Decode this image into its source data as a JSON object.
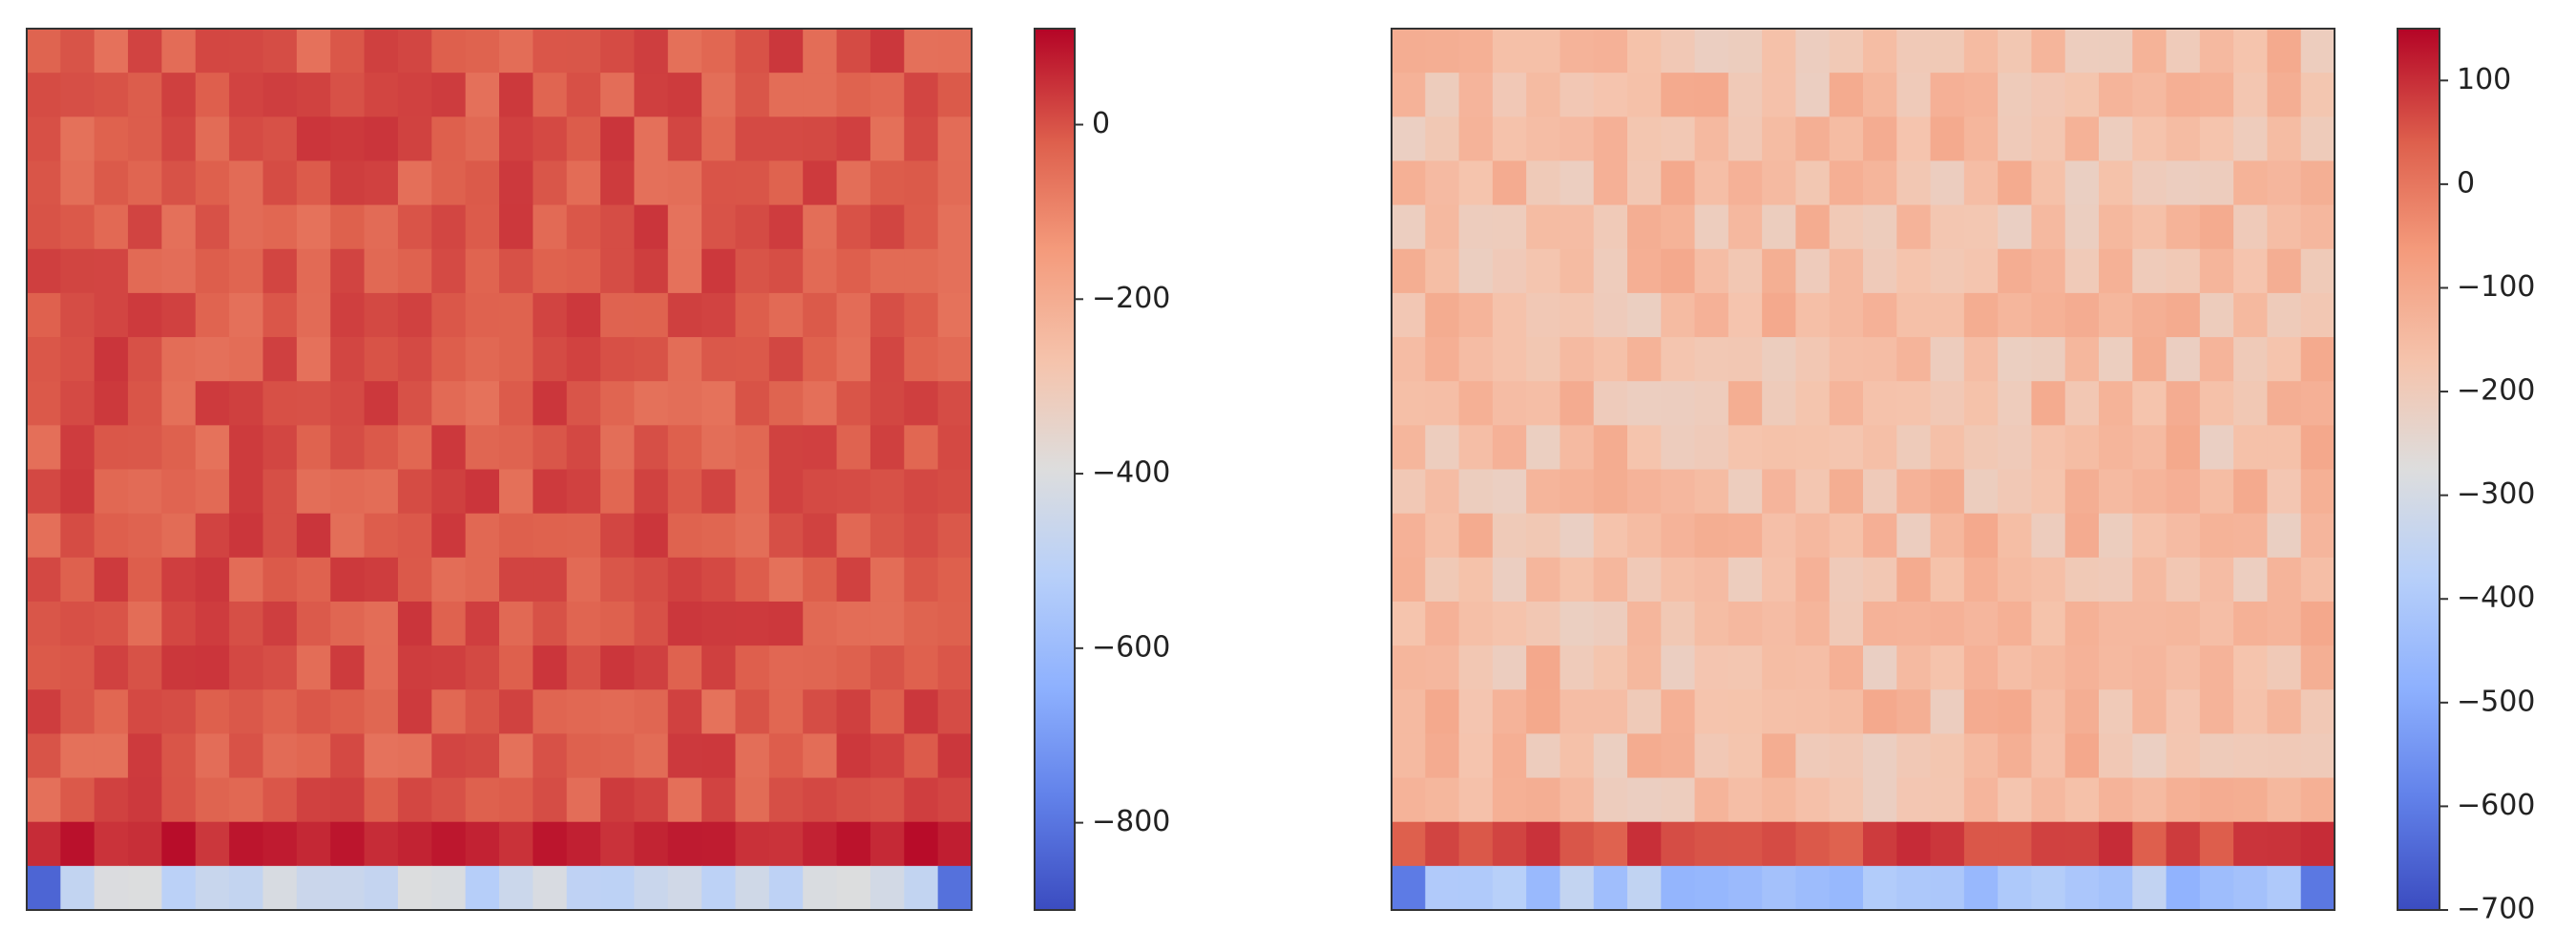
{
  "chart_data": [
    {
      "type": "heatmap",
      "colormap": "coolwarm",
      "rows": 20,
      "cols": 28,
      "xlabel": "",
      "ylabel": "",
      "colorbar": {
        "range": [
          -900,
          110
        ],
        "ticks": [
          0,
          -200,
          -400,
          -600,
          -800
        ],
        "tick_labels": [
          "0",
          "−200",
          "−400",
          "−600",
          "−800"
        ]
      },
      "value_summary": {
        "body_typical": 0,
        "body_variation": [
          -60,
          40
        ],
        "second_to_last_row": 70,
        "last_row": -460,
        "last_row_edges": -820
      }
    },
    {
      "type": "heatmap",
      "colormap": "coolwarm",
      "rows": 20,
      "cols": 28,
      "xlabel": "",
      "ylabel": "",
      "colorbar": {
        "range": [
          -700,
          150
        ],
        "ticks": [
          100,
          0,
          -100,
          -200,
          -300,
          -400,
          -500,
          -600,
          -700
        ],
        "tick_labels": [
          "100",
          "0",
          "−100",
          "−200",
          "−300",
          "−400",
          "−500",
          "−600",
          "−700"
        ]
      },
      "value_summary": {
        "body_typical": -80,
        "body_variation": [
          -140,
          -20
        ],
        "second_to_last_row": 70,
        "last_row": -410,
        "last_row_edges": -620
      }
    }
  ]
}
